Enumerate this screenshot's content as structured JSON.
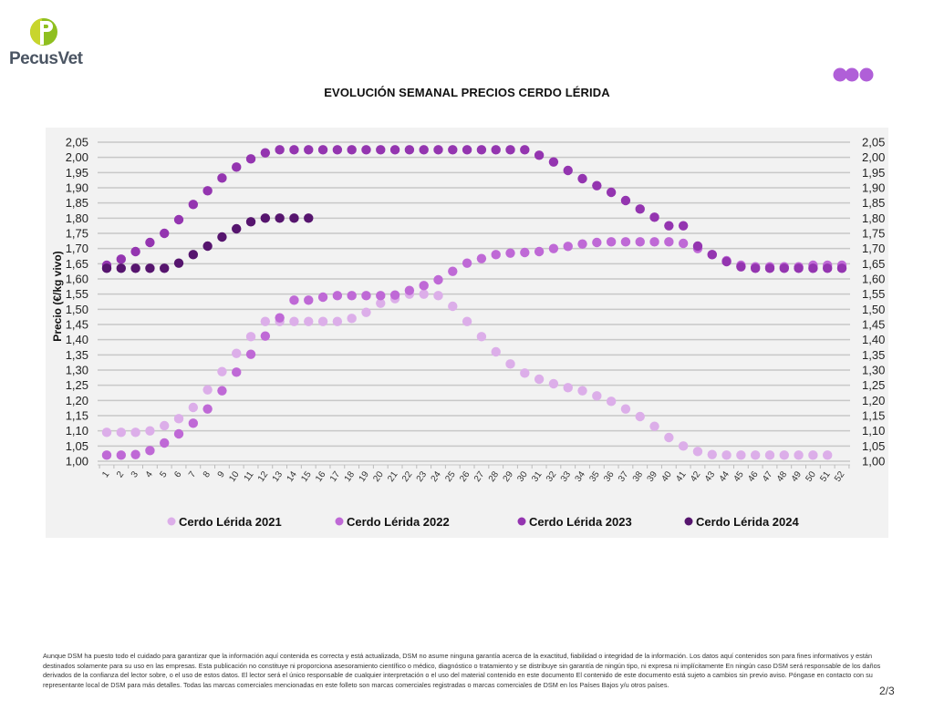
{
  "brand": {
    "name": "PecusVet",
    "logo_colors": [
      "#c8d52d",
      "#8fbf1f"
    ],
    "deco_dots_color": "#b05fd8"
  },
  "page": {
    "title": "EVOLUCIÓN SEMANAL PRECIOS CERDO LÉRIDA",
    "page_number": "2/3",
    "disclaimer": "Aunque DSM ha puesto todo el cuidado para garantizar que la información aquí contenida es correcta y está actualizada, DSM no asume ninguna garantía acerca de la exactitud, fiabilidad o integridad de la información. Los datos aquí contenidos son para fines informativos y están destinados solamente para su uso en las empresas. Esta publicación no constituye ni proporciona asesoramiento científico o médico, diagnóstico o tratamiento y se distribuye sin garantía de ningún tipo, ni expresa ni implícitamente En ningún caso DSM será responsable de los daños derivados de la confianza del lector sobre, o el uso de estos datos. El lector será el único responsable de cualquier interpretación o el uso del material contenido en este documento El contenido de este documento está sujeto a cambios sin previo aviso. Póngase en contacto con su representante local de DSM para más detalles. Todas las marcas comerciales mencionadas en este folleto son marcas comerciales registradas o marcas comerciales de DSM en los Países Bajos y/u otros países."
  },
  "chart_data": {
    "type": "scatter",
    "title": "EVOLUCIÓN SEMANAL PRECIOS CERDO LÉRIDA",
    "xlabel": "",
    "ylabel": "Precio (€/kg vivo)",
    "ylim": [
      1.0,
      2.05
    ],
    "yticks": [
      "1,00",
      "1,05",
      "1,10",
      "1,15",
      "1,20",
      "1,25",
      "1,30",
      "1,35",
      "1,40",
      "1,45",
      "1,50",
      "1,55",
      "1,60",
      "1,65",
      "1,70",
      "1,75",
      "1,80",
      "1,85",
      "1,90",
      "1,95",
      "2,00",
      "2,05"
    ],
    "x": [
      1,
      2,
      3,
      4,
      5,
      6,
      7,
      8,
      9,
      10,
      11,
      12,
      13,
      14,
      15,
      16,
      17,
      18,
      19,
      20,
      21,
      22,
      23,
      24,
      25,
      26,
      27,
      28,
      29,
      30,
      31,
      32,
      33,
      34,
      35,
      36,
      37,
      38,
      39,
      40,
      41,
      42,
      43,
      44,
      45,
      46,
      47,
      48,
      49,
      50,
      51,
      52
    ],
    "grid": true,
    "secondary_y_axis": true,
    "legend_position": "bottom",
    "series": [
      {
        "name": "Cerdo Lérida 2021",
        "color": "#dcaee9",
        "values": [
          1.095,
          1.095,
          1.095,
          1.1,
          1.117,
          1.14,
          1.177,
          1.235,
          1.295,
          1.355,
          1.41,
          1.46,
          1.46,
          1.46,
          1.46,
          1.46,
          1.46,
          1.47,
          1.49,
          1.52,
          1.535,
          1.55,
          1.55,
          1.545,
          1.51,
          1.46,
          1.41,
          1.36,
          1.32,
          1.29,
          1.27,
          1.255,
          1.242,
          1.232,
          1.215,
          1.197,
          1.172,
          1.147,
          1.115,
          1.078,
          1.05,
          1.032,
          1.022,
          1.02,
          1.02,
          1.02,
          1.02,
          1.02,
          1.02,
          1.02,
          1.02,
          null
        ]
      },
      {
        "name": "Cerdo Lérida 2022",
        "color": "#bf69d6",
        "values": [
          1.02,
          1.02,
          1.022,
          1.035,
          1.06,
          1.09,
          1.125,
          1.172,
          1.232,
          1.293,
          1.352,
          1.412,
          1.472,
          1.53,
          1.53,
          1.54,
          1.545,
          1.545,
          1.545,
          1.545,
          1.547,
          1.562,
          1.578,
          1.597,
          1.625,
          1.652,
          1.667,
          1.68,
          1.685,
          1.687,
          1.69,
          1.7,
          1.707,
          1.715,
          1.72,
          1.722,
          1.722,
          1.722,
          1.722,
          1.722,
          1.717,
          1.7,
          1.68,
          1.66,
          1.645,
          1.64,
          1.64,
          1.64,
          1.64,
          1.645,
          1.645,
          1.645
        ]
      },
      {
        "name": "Cerdo Lérida 2023",
        "color": "#9435b0",
        "values": [
          1.645,
          1.665,
          1.69,
          1.72,
          1.75,
          1.795,
          1.845,
          1.89,
          1.932,
          1.968,
          1.995,
          2.015,
          2.025,
          2.025,
          2.025,
          2.025,
          2.025,
          2.025,
          2.025,
          2.025,
          2.025,
          2.025,
          2.025,
          2.025,
          2.025,
          2.025,
          2.025,
          2.025,
          2.025,
          2.025,
          2.007,
          1.985,
          1.957,
          1.93,
          1.907,
          1.885,
          1.858,
          1.83,
          1.803,
          1.775,
          1.775,
          1.708,
          1.68,
          1.657,
          1.64,
          1.635,
          1.635,
          1.635,
          1.635,
          1.635,
          1.635,
          1.635
        ]
      },
      {
        "name": "Cerdo Lérida 2024",
        "color": "#56156e",
        "values": [
          1.635,
          1.635,
          1.635,
          1.635,
          1.635,
          1.652,
          1.68,
          1.708,
          1.738,
          1.765,
          1.788,
          1.8,
          1.8,
          1.8,
          1.8,
          null,
          null,
          null,
          null,
          null,
          null,
          null,
          null,
          null,
          null,
          null,
          null,
          null,
          null,
          null,
          null,
          null,
          null,
          null,
          null,
          null,
          null,
          null,
          null,
          null,
          null,
          null,
          null,
          null,
          null,
          null,
          null,
          null,
          null,
          null,
          null,
          null
        ]
      }
    ]
  }
}
